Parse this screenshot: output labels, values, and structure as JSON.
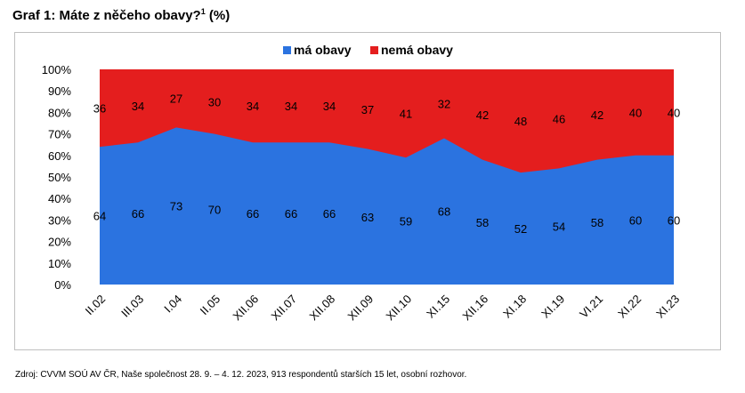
{
  "heading": {
    "title": "Graf 1: Máte z něčeho obavy?",
    "footnote_mark": "1",
    "unit": "(%)"
  },
  "chart_data": {
    "type": "area",
    "stacked": true,
    "categories": [
      "II.02",
      "III.03",
      "I.04",
      "II.05",
      "XII.06",
      "XII.07",
      "XII.08",
      "XII.09",
      "XII.10",
      "XI.15",
      "XII.16",
      "XI.18",
      "XI.19",
      "VI.21",
      "XI.22",
      "XI.23"
    ],
    "series": [
      {
        "name": "má obavy",
        "color": "#2b73e0",
        "values": [
          64,
          66,
          73,
          70,
          66,
          66,
          66,
          63,
          59,
          68,
          58,
          52,
          54,
          58,
          60,
          60
        ]
      },
      {
        "name": "nemá obavy",
        "color": "#e41e1e",
        "values": [
          36,
          34,
          27,
          30,
          34,
          34,
          34,
          37,
          41,
          32,
          42,
          48,
          46,
          42,
          40,
          40
        ]
      }
    ],
    "y_ticks": [
      "0%",
      "10%",
      "20%",
      "30%",
      "40%",
      "50%",
      "60%",
      "70%",
      "80%",
      "90%",
      "100%"
    ],
    "ylim": [
      0,
      100
    ],
    "legend_position": "top",
    "grid": false
  },
  "source": "Zdroj: CVVM SOÚ AV ČR, Naše společnost 28. 9. – 4. 12. 2023, 913 respondentů starších 15 let, osobní rozhovor."
}
